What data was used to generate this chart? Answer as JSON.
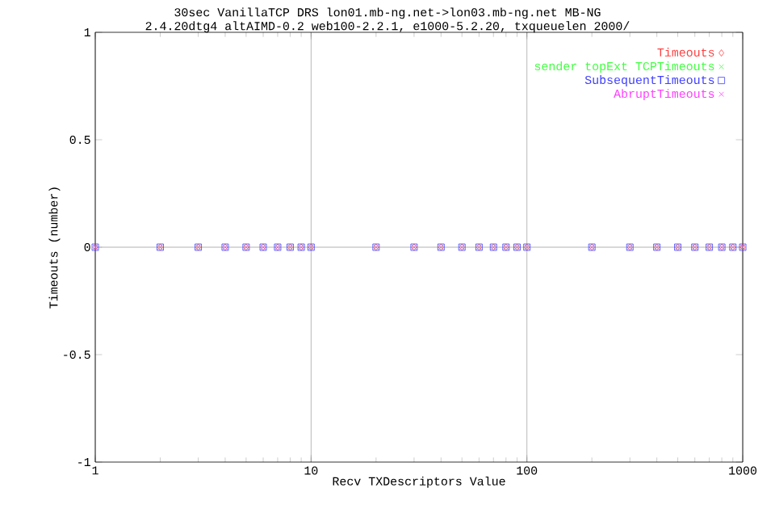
{
  "chart_data": {
    "type": "scatter",
    "title": "30sec VanillaTCP DRS lon01.mb-ng.net->lon03.mb-ng.net MB-NG",
    "subtitle": "2.4.20dtg4 altAIMD-0.2 web100-2.2.1, e1000-5.2.20, txqueuelen 2000/",
    "xlabel": "Recv TXDescriptors Value",
    "ylabel": "Timeouts (number)",
    "x": [
      1,
      2,
      3,
      4,
      5,
      6,
      7,
      8,
      9,
      10,
      20,
      30,
      40,
      50,
      60,
      70,
      80,
      90,
      100,
      200,
      300,
      400,
      500,
      600,
      700,
      800,
      900,
      1000
    ],
    "series": [
      {
        "name": "Timeouts",
        "color": "#ff4040",
        "marker": "diamond",
        "values": [
          0,
          0,
          0,
          0,
          0,
          0,
          0,
          0,
          0,
          0,
          0,
          0,
          0,
          0,
          0,
          0,
          0,
          0,
          0,
          0,
          0,
          0,
          0,
          0,
          0,
          0,
          0,
          0
        ]
      },
      {
        "name": "sender topExt TCPTimeouts",
        "color": "#40ff40",
        "marker": "cross",
        "values": [
          0,
          0,
          0,
          0,
          0,
          0,
          0,
          0,
          0,
          0,
          0,
          0,
          0,
          0,
          0,
          0,
          0,
          0,
          0,
          0,
          0,
          0,
          0,
          0,
          0,
          0,
          0,
          0
        ]
      },
      {
        "name": "SubsequentTimeouts",
        "color": "#4040ff",
        "marker": "square",
        "values": [
          0,
          0,
          0,
          0,
          0,
          0,
          0,
          0,
          0,
          0,
          0,
          0,
          0,
          0,
          0,
          0,
          0,
          0,
          0,
          0,
          0,
          0,
          0,
          0,
          0,
          0,
          0,
          0
        ]
      },
      {
        "name": "AbruptTimeouts",
        "color": "#ff40ff",
        "marker": "cross",
        "values": [
          0,
          0,
          0,
          0,
          0,
          0,
          0,
          0,
          0,
          0,
          0,
          0,
          0,
          0,
          0,
          0,
          0,
          0,
          0,
          0,
          0,
          0,
          0,
          0,
          0,
          0,
          0,
          0
        ]
      }
    ],
    "log": "x",
    "xlim": [
      1,
      1000
    ],
    "xticks": [
      1,
      10,
      100,
      1000
    ],
    "ylim": [
      -1,
      1
    ],
    "yticks": [
      -1,
      -0.5,
      0,
      0.5,
      1
    ],
    "grid": "x",
    "ref_lines": [
      {
        "axis": "y",
        "value": 0,
        "color": "#a0a0a0"
      }
    ],
    "legend": "top right"
  }
}
